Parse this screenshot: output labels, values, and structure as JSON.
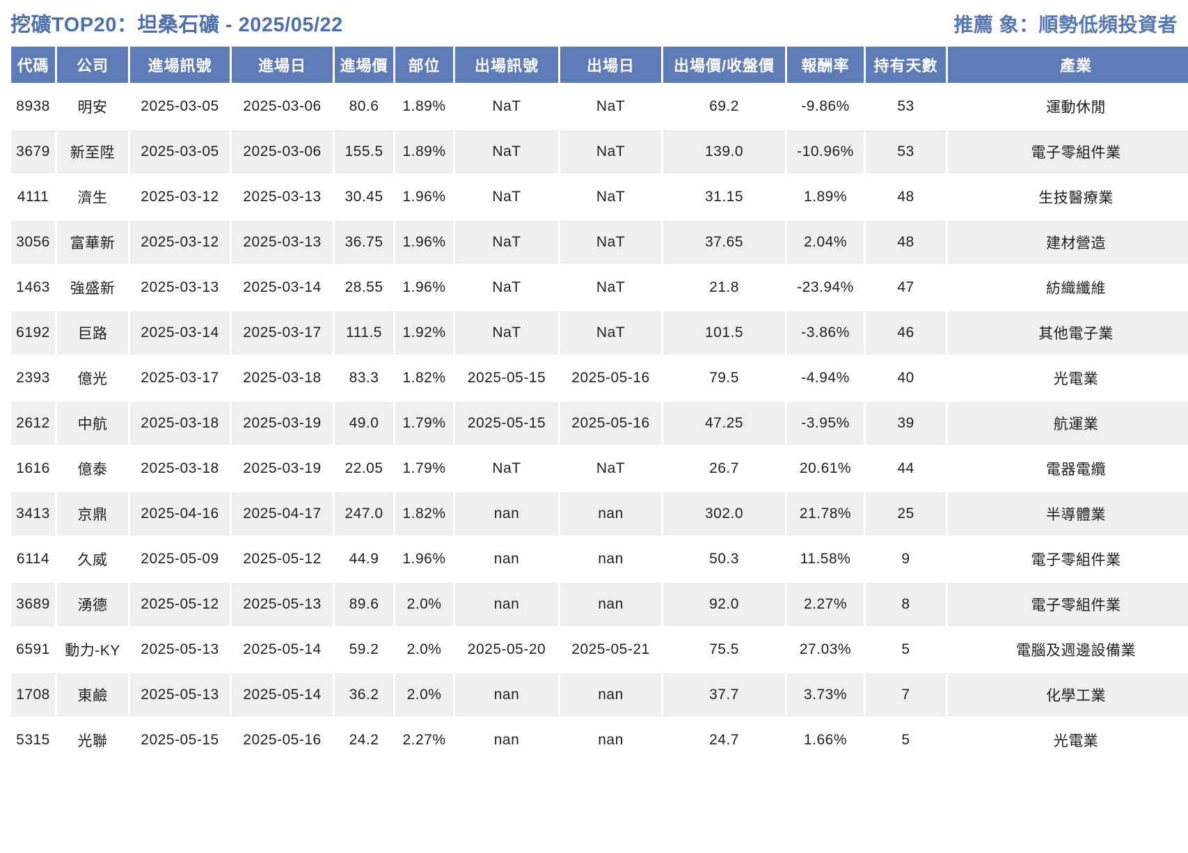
{
  "header": {
    "title": "挖礦TOP20：坦桑石礦 - 2025/05/22",
    "recommendation": "推薦 象：順勢低頻投資者"
  },
  "colors": {
    "title_blue": "#4e6fae",
    "header_bg_blue": "#5d7cb7",
    "row_alt_gray": "#efefef"
  },
  "chart_data": {
    "type": "table",
    "title": "挖礦TOP20：坦桑石礦 - 2025/05/22",
    "annotation": "推薦 象：順勢低頻投資者",
    "columns": [
      "代碼",
      "公司",
      "進場訊號",
      "進場日",
      "進場價",
      "部位",
      "出場訊號",
      "出場日",
      "出場價/收盤價",
      "報酬率",
      "持有天數",
      "產業"
    ],
    "rows": [
      [
        "8938",
        "明安",
        "2025-03-05",
        "2025-03-06",
        "80.6",
        "1.89%",
        "NaT",
        "NaT",
        "69.2",
        "-9.86%",
        "53",
        "運動休閒"
      ],
      [
        "3679",
        "新至陞",
        "2025-03-05",
        "2025-03-06",
        "155.5",
        "1.89%",
        "NaT",
        "NaT",
        "139.0",
        "-10.96%",
        "53",
        "電子零組件業"
      ],
      [
        "4111",
        "濟生",
        "2025-03-12",
        "2025-03-13",
        "30.45",
        "1.96%",
        "NaT",
        "NaT",
        "31.15",
        "1.89%",
        "48",
        "生技醫療業"
      ],
      [
        "3056",
        "富華新",
        "2025-03-12",
        "2025-03-13",
        "36.75",
        "1.96%",
        "NaT",
        "NaT",
        "37.65",
        "2.04%",
        "48",
        "建材營造"
      ],
      [
        "1463",
        "強盛新",
        "2025-03-13",
        "2025-03-14",
        "28.55",
        "1.96%",
        "NaT",
        "NaT",
        "21.8",
        "-23.94%",
        "47",
        "紡織纖維"
      ],
      [
        "6192",
        "巨路",
        "2025-03-14",
        "2025-03-17",
        "111.5",
        "1.92%",
        "NaT",
        "NaT",
        "101.5",
        "-3.86%",
        "46",
        "其他電子業"
      ],
      [
        "2393",
        "億光",
        "2025-03-17",
        "2025-03-18",
        "83.3",
        "1.82%",
        "2025-05-15",
        "2025-05-16",
        "79.5",
        "-4.94%",
        "40",
        "光電業"
      ],
      [
        "2612",
        "中航",
        "2025-03-18",
        "2025-03-19",
        "49.0",
        "1.79%",
        "2025-05-15",
        "2025-05-16",
        "47.25",
        "-3.95%",
        "39",
        "航運業"
      ],
      [
        "1616",
        "億泰",
        "2025-03-18",
        "2025-03-19",
        "22.05",
        "1.79%",
        "NaT",
        "NaT",
        "26.7",
        "20.61%",
        "44",
        "電器電纜"
      ],
      [
        "3413",
        "京鼎",
        "2025-04-16",
        "2025-04-17",
        "247.0",
        "1.82%",
        "nan",
        "nan",
        "302.0",
        "21.78%",
        "25",
        "半導體業"
      ],
      [
        "6114",
        "久威",
        "2025-05-09",
        "2025-05-12",
        "44.9",
        "1.96%",
        "nan",
        "nan",
        "50.3",
        "11.58%",
        "9",
        "電子零組件業"
      ],
      [
        "3689",
        "湧德",
        "2025-05-12",
        "2025-05-13",
        "89.6",
        "2.0%",
        "nan",
        "nan",
        "92.0",
        "2.27%",
        "8",
        "電子零組件業"
      ],
      [
        "6591",
        "動力-KY",
        "2025-05-13",
        "2025-05-14",
        "59.2",
        "2.0%",
        "2025-05-20",
        "2025-05-21",
        "75.5",
        "27.03%",
        "5",
        "電腦及週邊設備業"
      ],
      [
        "1708",
        "東鹼",
        "2025-05-13",
        "2025-05-14",
        "36.2",
        "2.0%",
        "nan",
        "nan",
        "37.7",
        "3.73%",
        "7",
        "化學工業"
      ],
      [
        "5315",
        "光聯",
        "2025-05-15",
        "2025-05-16",
        "24.2",
        "2.27%",
        "nan",
        "nan",
        "24.7",
        "1.66%",
        "5",
        "光電業"
      ]
    ]
  }
}
